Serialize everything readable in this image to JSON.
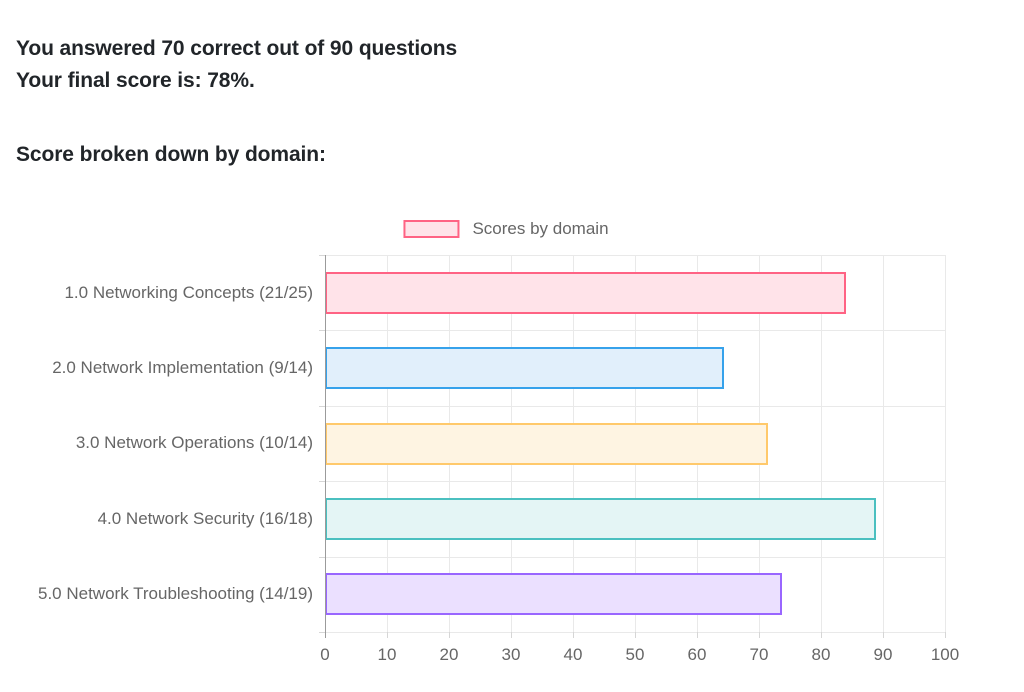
{
  "summary": {
    "line1": "You answered 70 correct out of 90 questions",
    "line2": "Your final score is: 78%.",
    "heading": "Score broken down by domain:"
  },
  "chart_data": {
    "type": "bar",
    "orientation": "horizontal",
    "legend": {
      "label": "Scores by domain",
      "position": "top"
    },
    "categories": [
      "1.0 Networking Concepts (21/25)",
      "2.0 Network Implementation (9/14)",
      "3.0 Network Operations (10/14)",
      "4.0 Network Security (16/18)",
      "5.0 Network Troubleshooting (14/19)"
    ],
    "values": [
      84,
      64.3,
      71.4,
      88.9,
      73.7
    ],
    "fractions": [
      "21/25",
      "9/14",
      "10/14",
      "16/18",
      "14/19"
    ],
    "xlabel": "",
    "ylabel": "",
    "xlim": [
      0,
      100
    ],
    "xticks": [
      0,
      10,
      20,
      30,
      40,
      50,
      60,
      70,
      80,
      90,
      100
    ],
    "grid": true,
    "bar_colors": [
      {
        "border": "#FF6384",
        "fill": "#FFE3E9"
      },
      {
        "border": "#36A2EB",
        "fill": "#E1EFFB"
      },
      {
        "border": "#FFC96B",
        "fill": "#FEF4E2"
      },
      {
        "border": "#4BC0C0",
        "fill": "#E4F5F5"
      },
      {
        "border": "#9966FF",
        "fill": "#EBE0FF"
      }
    ],
    "text_color": "#666666",
    "grid_color": "#e9e9e9",
    "axis_color": "#9b9b9b"
  }
}
